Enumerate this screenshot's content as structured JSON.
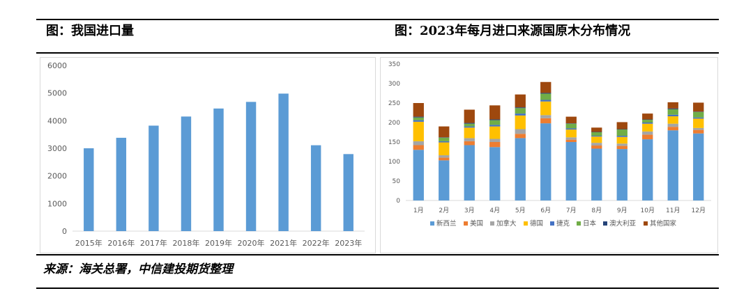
{
  "header": {
    "left_title": "图：我国进口量",
    "right_title": "图：2023年每月进口来源国原木分布情况"
  },
  "footer": {
    "source": "来源：海关总署，中信建投期货整理"
  },
  "chart_data": [
    {
      "type": "bar",
      "categories": [
        "2015年",
        "2016年",
        "2017年",
        "2018年",
        "2019年",
        "2020年",
        "2021年",
        "2022年",
        "2023年"
      ],
      "values": [
        3000,
        3380,
        3820,
        4150,
        4440,
        4680,
        4980,
        3110,
        2790
      ],
      "ylim": [
        0,
        6000
      ],
      "yticks": [
        0,
        1000,
        2000,
        3000,
        4000,
        5000,
        6000
      ],
      "color": "#5b9bd5",
      "grid": false,
      "legend": "none"
    },
    {
      "type": "bar",
      "stacked": true,
      "categories": [
        "1月",
        "2月",
        "3月",
        "4月",
        "5月",
        "6月",
        "7月",
        "8月",
        "9月",
        "10月",
        "11月",
        "12月"
      ],
      "ylim": [
        0,
        350
      ],
      "yticks": [
        0,
        50,
        100,
        150,
        200,
        250,
        300,
        350
      ],
      "legend": "bottom",
      "series": [
        {
          "name": "新西兰",
          "color": "#5b9bd5",
          "values": [
            130,
            103,
            142,
            137,
            160,
            198,
            150,
            133,
            132,
            157,
            180,
            172
          ]
        },
        {
          "name": "美国",
          "color": "#ed7d31",
          "values": [
            12,
            7,
            10,
            13,
            11,
            13,
            6,
            8,
            8,
            12,
            9,
            9
          ]
        },
        {
          "name": "加拿大",
          "color": "#a5a5a5",
          "values": [
            10,
            6,
            8,
            8,
            12,
            8,
            6,
            7,
            6,
            8,
            8,
            5
          ]
        },
        {
          "name": "德国",
          "color": "#ffc000",
          "values": [
            50,
            33,
            27,
            32,
            35,
            35,
            20,
            16,
            17,
            20,
            19,
            24
          ]
        },
        {
          "name": "捷克",
          "color": "#4472c4",
          "values": [
            4,
            3,
            3,
            4,
            5,
            4,
            3,
            2,
            3,
            3,
            4,
            3
          ]
        },
        {
          "name": "日本",
          "color": "#70ad47",
          "values": [
            7,
            9,
            7,
            12,
            14,
            16,
            12,
            9,
            16,
            7,
            14,
            14
          ]
        },
        {
          "name": "澳大利亚",
          "color": "#264478",
          "values": [
            2,
            1,
            2,
            2,
            2,
            2,
            1,
            1,
            1,
            1,
            2,
            1
          ]
        },
        {
          "name": "其他国家",
          "color": "#9e480e",
          "values": [
            35,
            28,
            34,
            36,
            33,
            28,
            17,
            11,
            18,
            15,
            16,
            23
          ]
        }
      ]
    }
  ]
}
